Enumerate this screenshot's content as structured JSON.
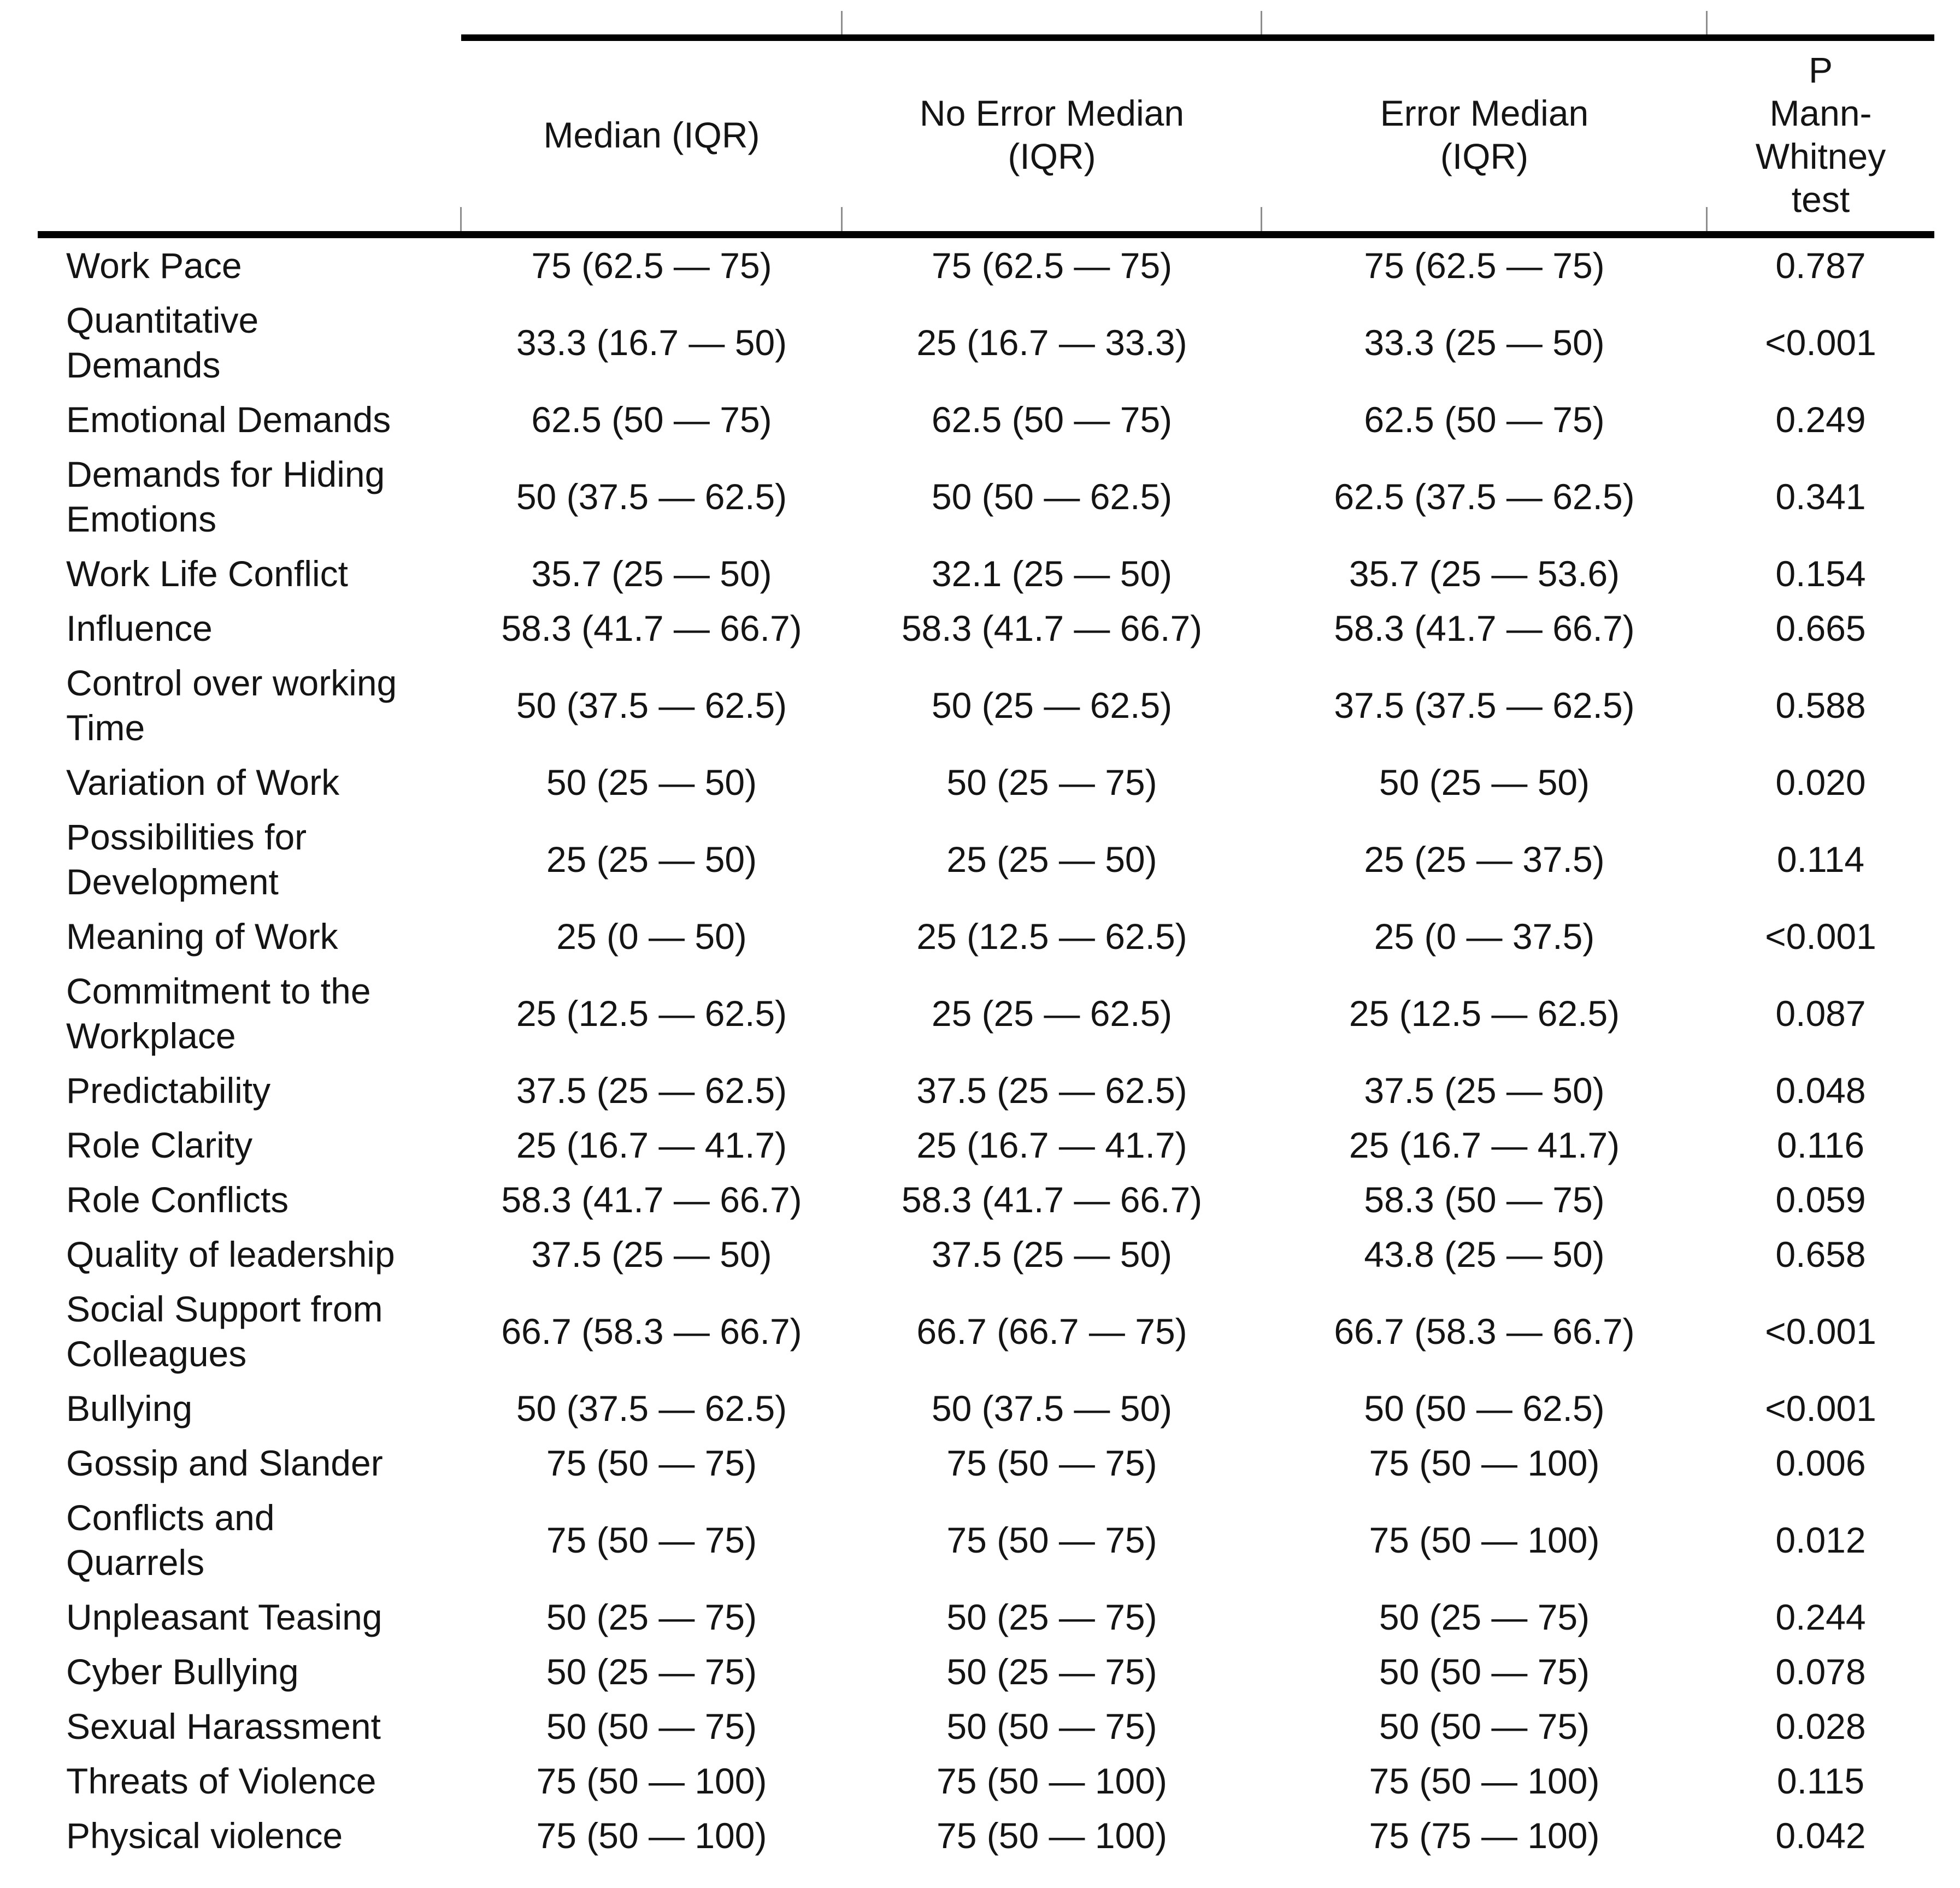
{
  "table": {
    "columns": [
      "",
      "Median (IQR)",
      "No Error Median\n(IQR)",
      "Error Median\n(IQR)",
      "P\nMann-\nWhitney\ntest"
    ],
    "rows": [
      {
        "label": "Work Pace",
        "values": [
          "75 (62.5 — 75)",
          "75 (62.5 — 75)",
          "75 (62.5 — 75)",
          "0.787"
        ]
      },
      {
        "label": "Quantitative\nDemands",
        "values": [
          "33.3 (16.7 — 50)",
          "25 (16.7 — 33.3)",
          "33.3 (25 — 50)",
          "<0.001"
        ]
      },
      {
        "label": "Emotional Demands",
        "values": [
          "62.5 (50 — 75)",
          "62.5 (50 — 75)",
          "62.5 (50 — 75)",
          "0.249"
        ]
      },
      {
        "label": "Demands for Hiding\nEmotions",
        "values": [
          "50 (37.5 — 62.5)",
          "50 (50 — 62.5)",
          "62.5 (37.5 — 62.5)",
          "0.341"
        ]
      },
      {
        "label": "Work Life Conflict",
        "values": [
          "35.7 (25 — 50)",
          "32.1 (25 — 50)",
          "35.7 (25 — 53.6)",
          "0.154"
        ]
      },
      {
        "label": "Influence",
        "values": [
          "58.3 (41.7 — 66.7)",
          "58.3 (41.7 — 66.7)",
          "58.3 (41.7 — 66.7)",
          "0.665"
        ]
      },
      {
        "label": "Control over working\nTime",
        "values": [
          "50 (37.5 — 62.5)",
          "50 (25 — 62.5)",
          "37.5 (37.5 — 62.5)",
          "0.588"
        ]
      },
      {
        "label": "Variation of Work",
        "values": [
          "50 (25 — 50)",
          "50 (25 — 75)",
          "50 (25 — 50)",
          "0.020"
        ]
      },
      {
        "label": "Possibilities for\nDevelopment",
        "values": [
          "25 (25 — 50)",
          "25 (25 — 50)",
          "25 (25 — 37.5)",
          "0.114"
        ]
      },
      {
        "label": "Meaning of Work",
        "values": [
          "25 (0 — 50)",
          "25 (12.5 — 62.5)",
          "25 (0 — 37.5)",
          "<0.001"
        ]
      },
      {
        "label": "Commitment to the\nWorkplace",
        "values": [
          "25 (12.5 — 62.5)",
          "25 (25 — 62.5)",
          "25 (12.5 — 62.5)",
          "0.087"
        ]
      },
      {
        "label": "Predictability",
        "values": [
          "37.5 (25 — 62.5)",
          "37.5 (25 — 62.5)",
          "37.5 (25 — 50)",
          "0.048"
        ]
      },
      {
        "label": "Role Clarity",
        "values": [
          "25 (16.7 — 41.7)",
          "25 (16.7 — 41.7)",
          "25 (16.7 — 41.7)",
          "0.116"
        ]
      },
      {
        "label": "Role Conflicts",
        "values": [
          "58.3 (41.7 — 66.7)",
          "58.3 (41.7 — 66.7)",
          "58.3 (50 — 75)",
          "0.059"
        ]
      },
      {
        "label": "Quality of leadership",
        "values": [
          "37.5 (25 — 50)",
          "37.5 (25 — 50)",
          "43.8 (25 — 50)",
          "0.658"
        ]
      },
      {
        "label": "Social Support from\nColleagues",
        "values": [
          "66.7 (58.3 — 66.7)",
          "66.7 (66.7 — 75)",
          "66.7 (58.3 — 66.7)",
          "<0.001"
        ]
      },
      {
        "label": "Bullying",
        "values": [
          "50 (37.5 — 62.5)",
          "50 (37.5 — 50)",
          "50 (50 — 62.5)",
          "<0.001"
        ]
      },
      {
        "label": "Gossip and Slander",
        "values": [
          "75 (50 — 75)",
          "75 (50 — 75)",
          "75 (50 — 100)",
          "0.006"
        ]
      },
      {
        "label": "Conflicts and\nQuarrels",
        "values": [
          "75 (50 — 75)",
          "75 (50 — 75)",
          "75 (50 — 100)",
          "0.012"
        ]
      },
      {
        "label": "Unpleasant Teasing",
        "values": [
          "50 (25 — 75)",
          "50 (25 — 75)",
          "50 (25 — 75)",
          "0.244"
        ]
      },
      {
        "label": "Cyber Bullying",
        "values": [
          "50 (25 — 75)",
          "50 (25 — 75)",
          "50 (50 — 75)",
          "0.078"
        ]
      },
      {
        "label": "Sexual Harassment",
        "values": [
          "50 (50 — 75)",
          "50 (50 — 75)",
          "50 (50 — 75)",
          "0.028"
        ]
      },
      {
        "label": "Threats of Violence",
        "values": [
          "75 (50 — 100)",
          "75 (50 — 100)",
          "75 (50 — 100)",
          "0.115"
        ]
      },
      {
        "label": "Physical violence",
        "values": [
          "75 (50 — 100)",
          "75 (50 — 100)",
          "75 (75 — 100)",
          "0.042"
        ]
      }
    ]
  }
}
